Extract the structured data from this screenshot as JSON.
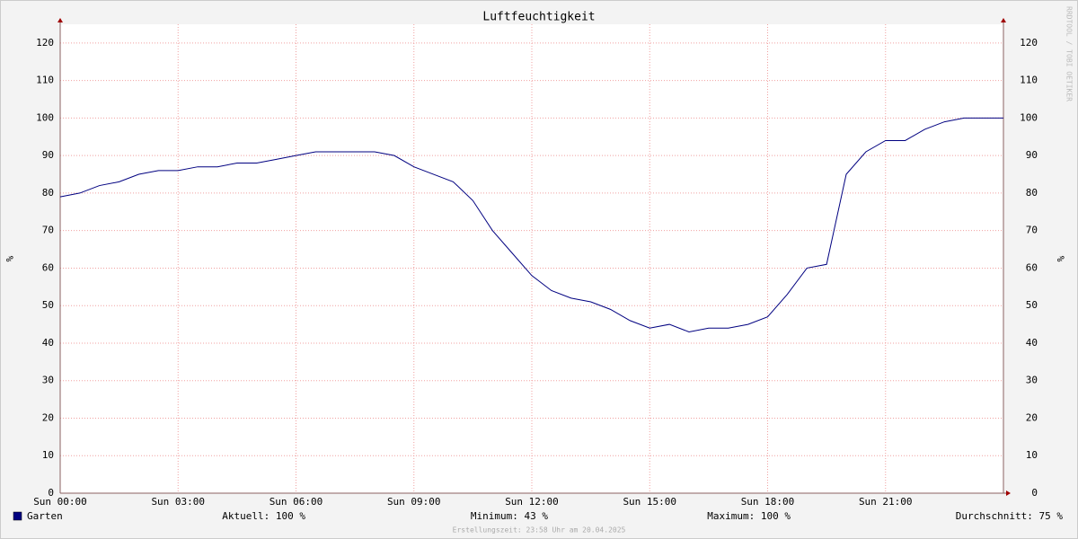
{
  "chart_data": {
    "type": "line",
    "title": "Luftfeuchtigkeit",
    "y_label": "%",
    "watermark": "RRDTOOL / TOBI OETIKER",
    "footer": "Erstellungszeit: 23:58 Uhr am 20.04.2025",
    "xlim": [
      0,
      24
    ],
    "xticks": [
      {
        "value": 0,
        "label": "Sun 00:00"
      },
      {
        "value": 3,
        "label": "Sun 03:00"
      },
      {
        "value": 6,
        "label": "Sun 06:00"
      },
      {
        "value": 9,
        "label": "Sun 09:00"
      },
      {
        "value": 12,
        "label": "Sun 12:00"
      },
      {
        "value": 15,
        "label": "Sun 15:00"
      },
      {
        "value": 18,
        "label": "Sun 18:00"
      },
      {
        "value": 21,
        "label": "Sun 21:00"
      }
    ],
    "ylim": [
      0,
      125
    ],
    "yticks": [
      0,
      10,
      20,
      30,
      40,
      50,
      60,
      70,
      80,
      90,
      100,
      110,
      120
    ],
    "grid": true,
    "x": [
      0,
      0.5,
      1,
      1.5,
      2,
      2.5,
      3,
      3.5,
      4,
      4.5,
      5,
      5.5,
      6,
      6.5,
      7,
      7.5,
      8,
      8.5,
      9,
      9.5,
      10,
      10.5,
      11,
      11.5,
      12,
      12.5,
      13,
      13.5,
      14,
      14.5,
      15,
      15.5,
      16,
      16.5,
      17,
      17.5,
      18,
      18.5,
      19,
      19.5,
      20,
      20.5,
      21,
      21.5,
      22,
      22.5,
      23,
      23.5,
      24
    ],
    "series": [
      {
        "name": "Garten",
        "color": "#000080",
        "values": [
          79,
          80,
          82,
          83,
          85,
          86,
          86,
          87,
          87,
          88,
          88,
          89,
          90,
          91,
          91,
          91,
          91,
          90,
          87,
          85,
          83,
          78,
          70,
          64,
          58,
          54,
          52,
          51,
          49,
          46,
          44,
          45,
          43,
          44,
          44,
          45,
          47,
          53,
          60,
          61,
          85,
          91,
          94,
          94,
          97,
          99,
          100,
          100,
          100
        ]
      }
    ],
    "stats": [
      {
        "label": "Aktuell:",
        "value": 100,
        "unit": "%"
      },
      {
        "label": "Minimum:",
        "value": 43,
        "unit": "%"
      },
      {
        "label": "Maximum:",
        "value": 100,
        "unit": "%"
      },
      {
        "label": "Durchschnitt:",
        "value": 75,
        "unit": "%"
      }
    ]
  }
}
